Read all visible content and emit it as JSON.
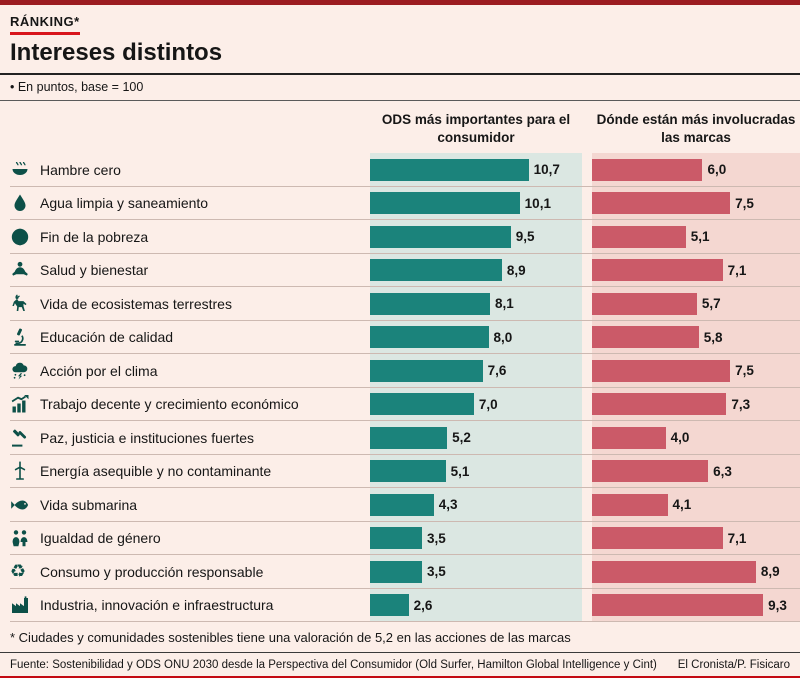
{
  "header": {
    "kicker": "RÁNKING*",
    "title": "Intereses distintos",
    "subtitle": "• En puntos, base = 100"
  },
  "chart_data": {
    "type": "bar",
    "orientation": "horizontal",
    "title": "Intereses distintos",
    "subtitle": "En puntos, base = 100",
    "value_format": "decimal-comma",
    "categories": [
      "Hambre cero",
      "Agua limpia y saneamiento",
      "Fin de la pobreza",
      "Salud y bienestar",
      "Vida de ecosistemas terrestres",
      "Educación de calidad",
      "Acción por el clima",
      "Trabajo decente y crecimiento económico",
      "Paz, justicia e instituciones fuertes",
      "Energía asequible y no contaminante",
      "Vida submarina",
      "Igualdad de género",
      "Consumo y producción responsable",
      "Industria, innovación e infraestructura"
    ],
    "icons": [
      "bowl-icon",
      "water-drop-icon",
      "globe-icon",
      "person-meditating-icon",
      "deer-icon",
      "microscope-icon",
      "storm-cloud-icon",
      "growth-chart-icon",
      "gavel-icon",
      "wind-turbine-icon",
      "fish-icon",
      "two-people-icon",
      "recycle-icon",
      "factory-icon"
    ],
    "series": [
      {
        "name": "ODS más importantes para el consumidor",
        "color": "#1b837b",
        "panel_bg": "#dbe7e2",
        "xmax": 14.3,
        "values": [
          10.7,
          10.1,
          9.5,
          8.9,
          8.1,
          8.0,
          7.6,
          7.0,
          5.2,
          5.1,
          4.3,
          3.5,
          3.5,
          2.6
        ]
      },
      {
        "name": "Dónde están más involucradas las marcas",
        "color": "#cb5a68",
        "panel_bg": "#f4d7d1",
        "xmax": 11.3,
        "values": [
          6.0,
          7.5,
          5.1,
          7.1,
          5.7,
          5.8,
          7.5,
          7.3,
          4.0,
          6.3,
          4.1,
          7.1,
          8.9,
          9.3
        ]
      }
    ]
  },
  "footnote": "* Ciudades y comunidades sostenibles tiene una valoración de 5,2 en las acciones de las marcas",
  "source": "Fuente: Sostenibilidad y ODS ONU 2030 desde la Perspectiva del Consumidor (Old Surfer, Hamilton Global Intelligence y Cint)",
  "credit": "El Cronista/P. Fisicaro",
  "colors": {
    "background": "#fceee8",
    "teal_bar": "#1b837b",
    "pink_bar": "#cb5a68",
    "teal_panel": "#dbe7e2",
    "pink_panel": "#f4d7d1",
    "accent_red": "#d8161c",
    "top_border": "#9c1c20"
  }
}
